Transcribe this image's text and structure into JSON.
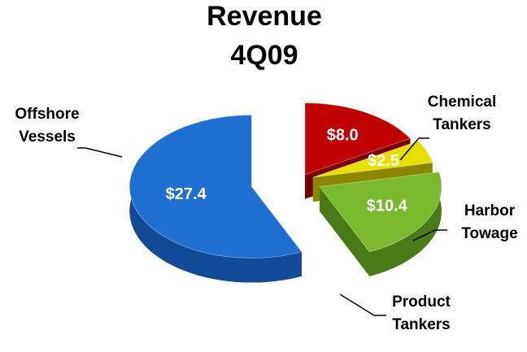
{
  "chart_data": {
    "type": "pie3d",
    "title": "Revenue 4Q09",
    "categories": [
      "Chemical Tankers",
      "Harbor Towage",
      "Product Tankers",
      "Offshore Vessels"
    ],
    "values": [
      8.0,
      2.5,
      10.4,
      27.4
    ],
    "value_labels": [
      "$8.0",
      "$2.5",
      "$10.4",
      "$27.4"
    ],
    "colors": [
      "#c00000",
      "#e6e000",
      "#7ab82e",
      "#1f6fd1"
    ],
    "side_colors": [
      "#7a0000",
      "#8c8700",
      "#4a7a15",
      "#114a96"
    ]
  }
}
